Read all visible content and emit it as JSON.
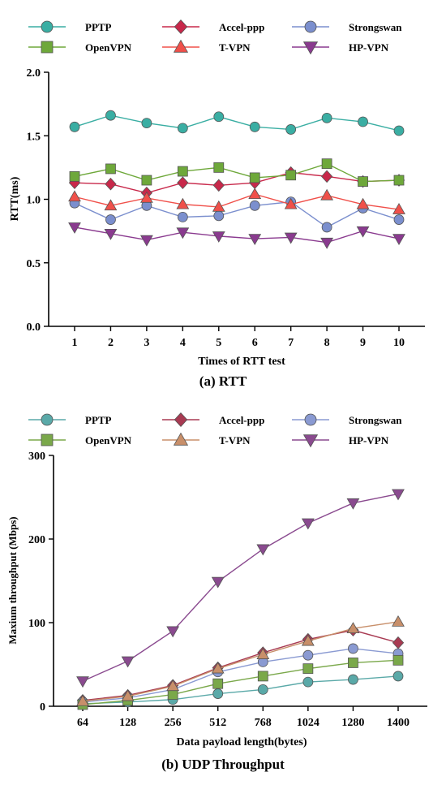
{
  "chart_data": [
    {
      "type": "line",
      "title": "(a) RTT",
      "xlabel": "Times of RTT test",
      "ylabel": "RTT(ms)",
      "categories": [
        "1",
        "2",
        "3",
        "4",
        "5",
        "6",
        "7",
        "8",
        "9",
        "10"
      ],
      "ylim": [
        0,
        2.0
      ],
      "yticks": [
        "0.0",
        "0.5",
        "1.0",
        "1.5",
        "2.0"
      ],
      "legend_position": "top",
      "grid": false,
      "series": [
        {
          "name": "PPTP",
          "color": "#3aaea3",
          "marker": "circle",
          "values": [
            1.57,
            1.66,
            1.6,
            1.56,
            1.65,
            1.57,
            1.55,
            1.64,
            1.61,
            1.54
          ]
        },
        {
          "name": "Accel-ppp",
          "color": "#c8284a",
          "marker": "diamond",
          "values": [
            1.13,
            1.12,
            1.05,
            1.13,
            1.11,
            1.13,
            1.21,
            1.18,
            1.14,
            1.15
          ]
        },
        {
          "name": "Strongswan",
          "color": "#7b8fce",
          "marker": "circle",
          "values": [
            0.97,
            0.84,
            0.95,
            0.86,
            0.87,
            0.95,
            0.98,
            0.78,
            0.93,
            0.84
          ]
        },
        {
          "name": "OpenVPN",
          "color": "#6ea83a",
          "marker": "square",
          "values": [
            1.18,
            1.24,
            1.15,
            1.22,
            1.25,
            1.17,
            1.19,
            1.28,
            1.14,
            1.15
          ]
        },
        {
          "name": "T-VPN",
          "color": "#f0504a",
          "marker": "triangle-up",
          "values": [
            1.02,
            0.95,
            1.01,
            0.96,
            0.94,
            1.04,
            0.96,
            1.03,
            0.96,
            0.92
          ]
        },
        {
          "name": "HP-VPN",
          "color": "#8a3a8f",
          "marker": "triangle-down",
          "values": [
            0.78,
            0.73,
            0.68,
            0.74,
            0.71,
            0.69,
            0.7,
            0.66,
            0.75,
            0.69
          ]
        }
      ]
    },
    {
      "type": "line",
      "title": "(b) UDP Throughput",
      "xlabel": "Data payload length(bytes)",
      "ylabel": "Maxium throughput (Mbps)",
      "categories": [
        "64",
        "128",
        "256",
        "512",
        "768",
        "1024",
        "1280",
        "1400"
      ],
      "ylim": [
        0,
        300
      ],
      "yticks": [
        "0",
        "100",
        "200",
        "300"
      ],
      "legend_position": "top",
      "grid": false,
      "series": [
        {
          "name": "PPTP",
          "color": "#5aa9a8",
          "marker": "circle",
          "values": [
            3,
            5,
            8,
            15,
            20,
            29,
            32,
            36
          ]
        },
        {
          "name": "Accel-ppp",
          "color": "#a83a52",
          "marker": "diamond",
          "values": [
            7,
            13,
            25,
            46,
            64,
            80,
            91,
            76
          ]
        },
        {
          "name": "Strongswan",
          "color": "#8a9ad2",
          "marker": "circle",
          "values": [
            5,
            10,
            20,
            41,
            53,
            61,
            69,
            63
          ]
        },
        {
          "name": "OpenVPN",
          "color": "#7aa84a",
          "marker": "square",
          "values": [
            2,
            7,
            14,
            27,
            36,
            45,
            52,
            55
          ]
        },
        {
          "name": "T-VPN",
          "color": "#c88f6a",
          "marker": "triangle-up",
          "values": [
            6,
            12,
            24,
            45,
            62,
            78,
            93,
            101
          ]
        },
        {
          "name": "HP-VPN",
          "color": "#8a4a8f",
          "marker": "triangle-down",
          "values": [
            30,
            54,
            90,
            149,
            188,
            219,
            243,
            254
          ]
        }
      ]
    }
  ]
}
